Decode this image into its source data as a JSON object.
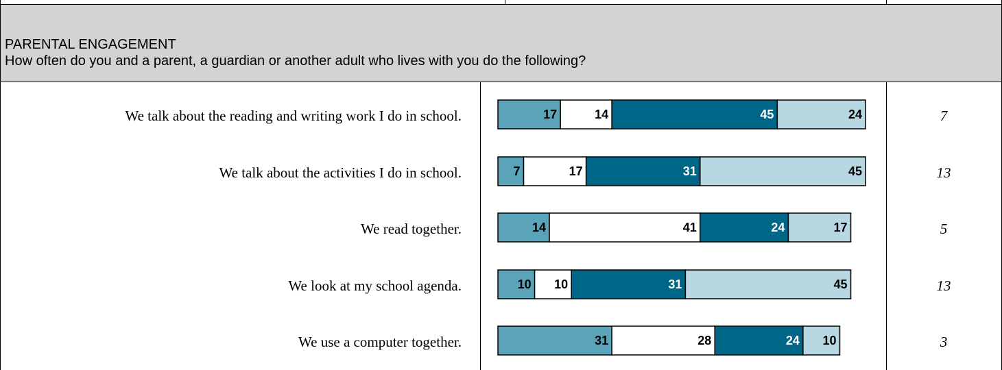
{
  "header": {
    "title": "PARENTAL ENGAGEMENT",
    "subtitle": "How often do you and a parent, a guardian or another adult who lives with you do the following?"
  },
  "colors": {
    "seg1": "#5aa3b8",
    "seg2": "#ffffff",
    "seg3": "#006687",
    "seg4": "#b7d7e2"
  },
  "chart_data": {
    "type": "bar",
    "orientation": "horizontal-stacked",
    "categories": [
      "We talk about the reading and writing work I do in school.",
      "We talk about the activities I do in school.",
      "We read together.",
      "We look at my school agenda.",
      "We use a computer together."
    ],
    "series": [
      {
        "values": [
          17,
          7,
          14,
          10,
          31
        ]
      },
      {
        "values": [
          14,
          17,
          41,
          10,
          28
        ]
      },
      {
        "values": [
          45,
          31,
          24,
          31,
          24
        ]
      },
      {
        "values": [
          24,
          45,
          17,
          45,
          10
        ]
      }
    ],
    "side_values": [
      "7",
      "13",
      "5",
      "13",
      "3"
    ]
  }
}
